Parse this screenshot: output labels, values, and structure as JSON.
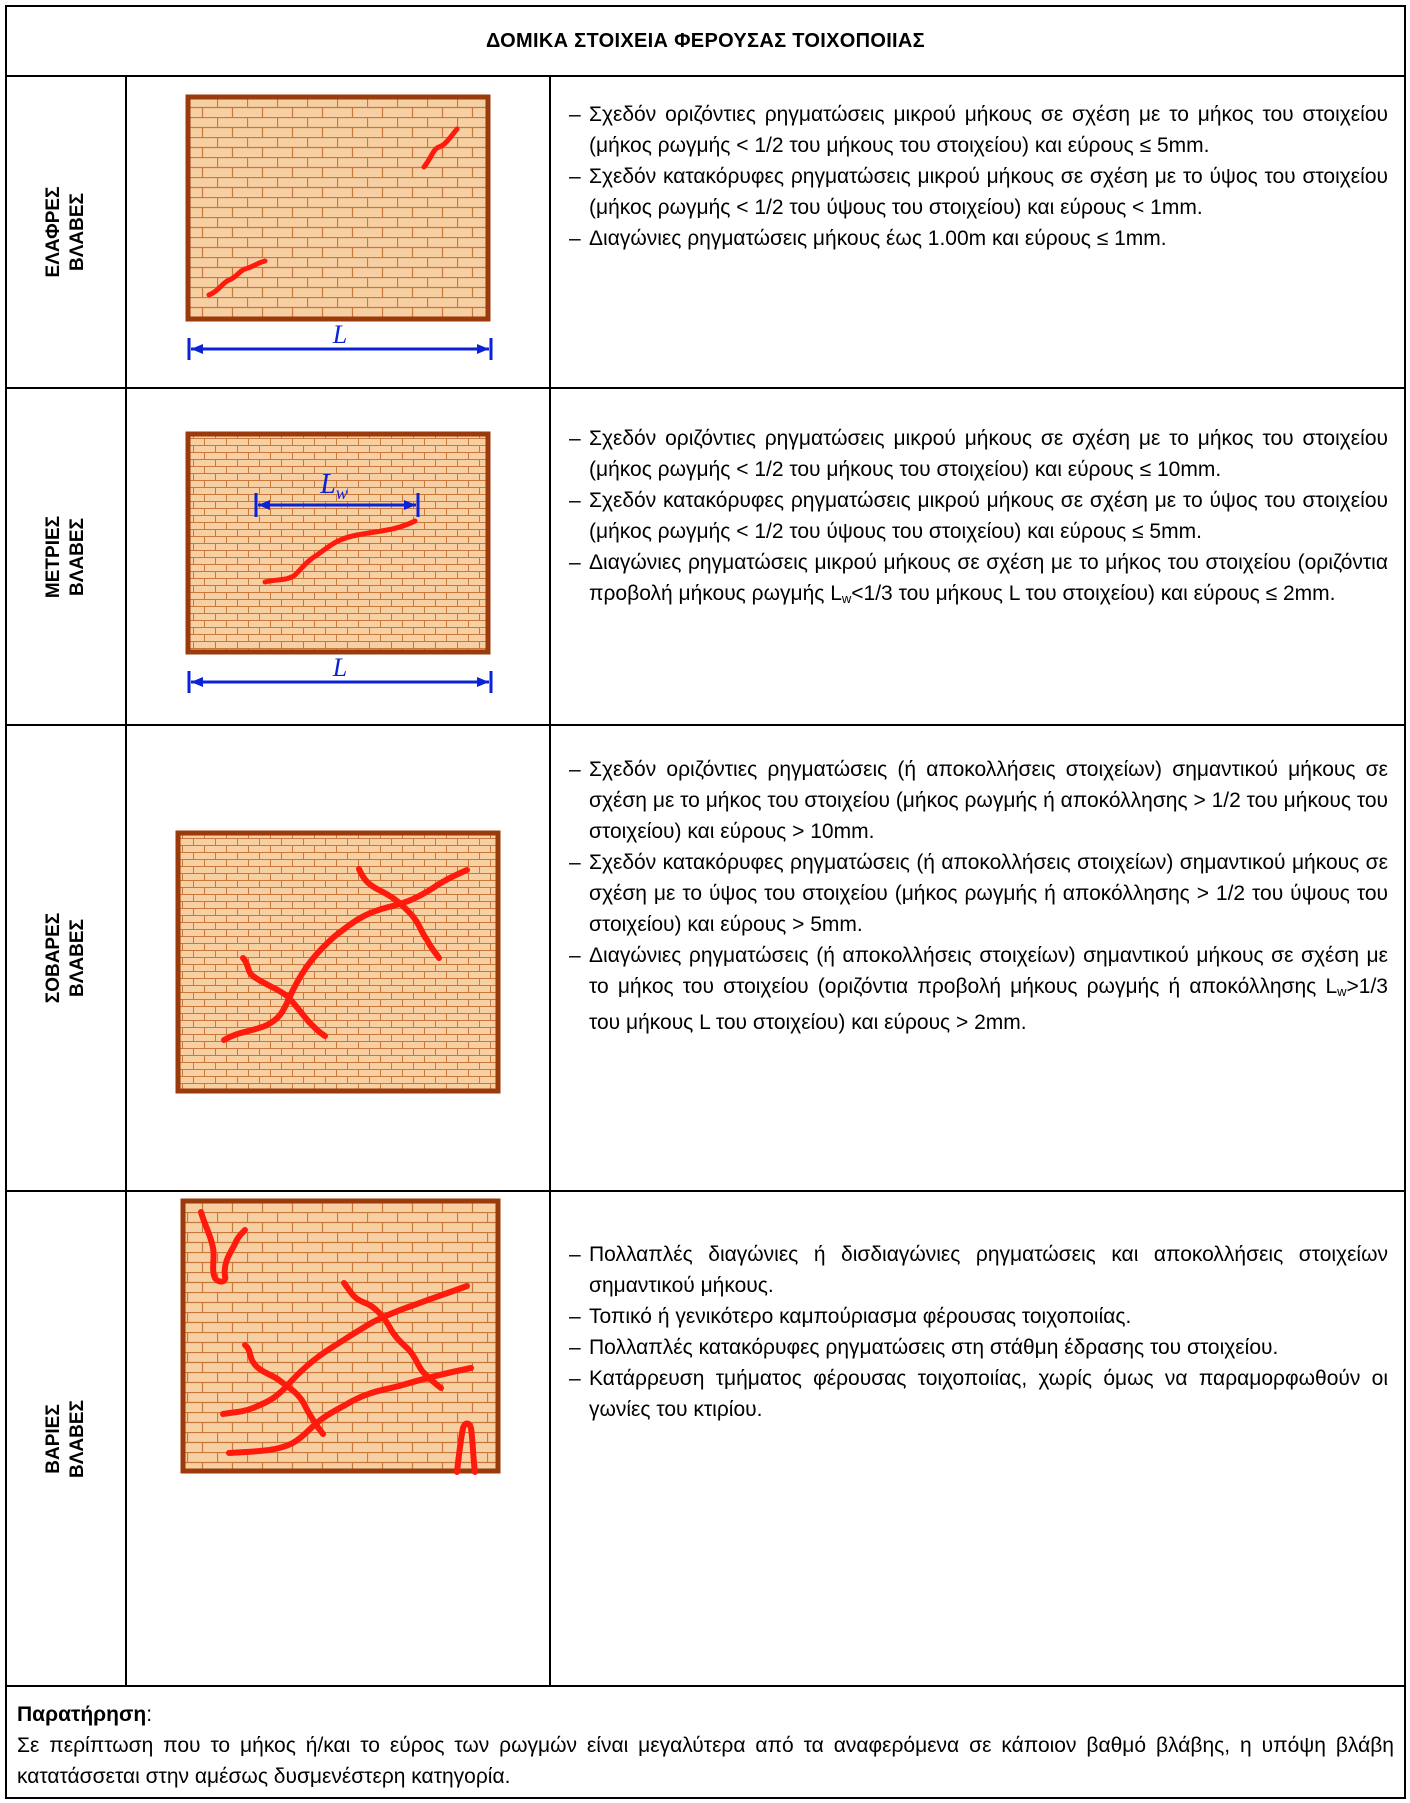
{
  "title": "ΔΟΜΙΚΑ ΣΤΟΙΧΕΙΑ ΦΕΡΟΥΣΑΣ ΤΟΙΧΟΠΟΙΙΑΣ",
  "rows": [
    {
      "label_line1": "ΕΛΑΦΡΕΣ",
      "label_line2": "ΒΛΑΒΕΣ",
      "dim_label": "L",
      "items": [
        "Σχεδόν οριζόντιες ρηγματώσεις μικρού μήκους σε σχέση με το μήκος του στοιχείου (μήκος ρωγμής < 1/2 του μήκους του στοιχείου) και εύρους ≤ 5mm.",
        "Σχεδόν κατακόρυφες ρηγματώσεις μικρού μήκους σε σχέση με το ύψος του στοιχείου (μήκος ρωγμής < 1/2 του ύψους του στοιχείου) και εύρους < 1mm.",
        "Διαγώνιες ρηγματώσεις μήκους έως 1.00m και εύρους ≤ 1mm."
      ]
    },
    {
      "label_line1": "ΜΕΤΡΙΕΣ",
      "label_line2": "ΒΛΑΒΕΣ",
      "dim_label": "L",
      "dim_label_w_base": "L",
      "dim_label_w_sub": "w",
      "items": [
        "Σχεδόν οριζόντιες ρηγματώσεις μικρού μήκους σε σχέση με το μήκος του στοιχείου (μήκος ρωγμής < 1/2 του μήκους του στοιχείου) και εύρους ≤ 10mm.",
        "Σχεδόν κατακόρυφες ρηγματώσεις μικρού μήκους σε σχέση με το ύψος του στοιχείου (μήκος ρωγμής < 1/2 του ύψους του στοιχείου) και εύρους ≤ 5mm."
      ],
      "item3_before": "Διαγώνιες ρηγματώσεις μικρού μήκους σε σχέση με το μήκος του στοιχείου (οριζόντια προβολή μήκους ρωγμής L",
      "item3_sub": "w",
      "item3_after": "<1/3 του μήκους L του στοιχείου) και εύρους ≤ 2mm."
    },
    {
      "label_line1": "ΣΟΒΑΡΕΣ",
      "label_line2": "ΒΛΑΒΕΣ",
      "items": [
        "Σχεδόν οριζόντιες ρηγματώσεις (ή αποκολλήσεις στοιχείων) σημαντικού μήκους σε σχέση με το μήκος του στοιχείου (μήκος ρωγμής ή αποκόλλησης > 1/2 του μήκους του στοιχείου) και εύρους > 10mm.",
        "Σχεδόν κατακόρυφες ρηγματώσεις (ή αποκολλήσεις στοιχείων) σημαντικού μήκους σε σχέση με το ύψος του στοιχείου (μήκος ρωγμής ή αποκόλλησης > 1/2 του ύψους του στοιχείου) και εύρους > 5mm."
      ],
      "item3_before": "Διαγώνιες ρηγματώσεις (ή αποκολλήσεις στοιχείων) σημαντικού μήκους σε σχέση με το μήκος του στοιχείου (οριζόντια προβολή μήκους ρωγμής ή αποκόλλησης L",
      "item3_sub": "w",
      "item3_after": ">1/3 του μήκους L του στοιχείου) και εύρους > 2mm."
    },
    {
      "label_line1": "ΒΑΡΙΕΣ",
      "label_line2": "ΒΛΑΒΕΣ",
      "items": [
        "Πολλαπλές διαγώνιες ή δισδιαγώνιες ρηγματώσεις και αποκολλήσεις στοιχείων σημαντικού μήκους.",
        "Τοπικό ή γενικότερο καμπούριασμα φέρουσας τοιχοποιίας.",
        "Πολλαπλές κατακόρυφες ρηγματώσεις στη στάθμη έδρασης του στοιχείου.",
        "Κατάρρευση τμήματος φέρουσας τοιχοποιίας, χωρίς όμως να παραμορφωθούν οι γωνίες του κτιρίου."
      ]
    }
  ],
  "dash": "–",
  "note": {
    "label": "Παρατήρηση",
    "colon": ":",
    "text": "Σε περίπτωση που το μήκος ή/και το εύρος των ρωγμών είναι μεγαλύτερα από τα αναφερόμενα σε κάποιον βαθμό βλάβης, η υπόψη βλάβη κατατάσσεται στην αμέσως δυσμενέστερη κατηγορία."
  },
  "colors": {
    "wall_fill": "#f6cfa2",
    "wall_border": "#9b3a0c",
    "brick_line": "#c9783a",
    "crack": "#ff1a0d",
    "dimension": "#0b22d6"
  }
}
